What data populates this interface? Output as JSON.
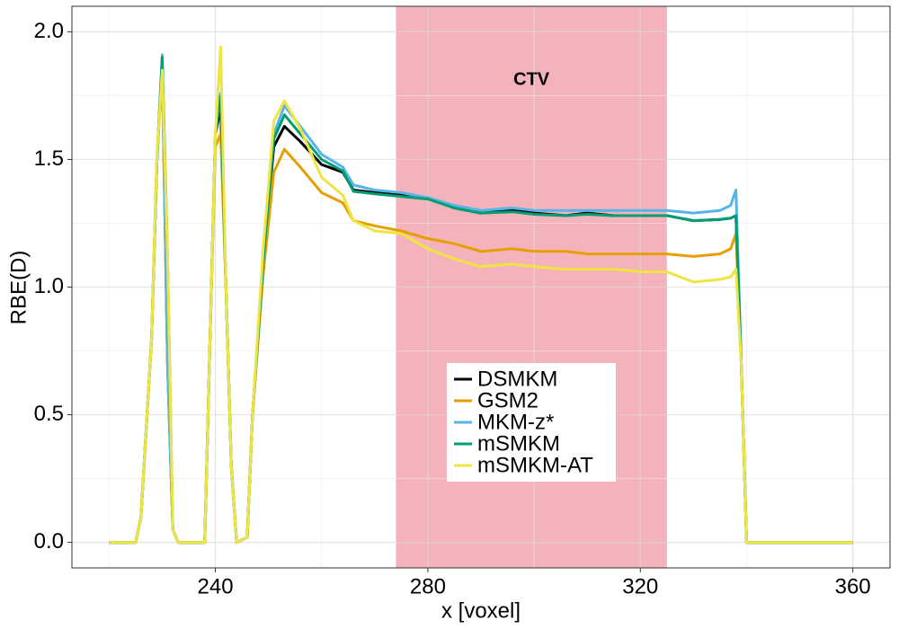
{
  "chart_data": {
    "type": "line",
    "xlabel": "x [voxel]",
    "ylabel": "RBE(D)",
    "x": [
      220,
      225,
      226,
      228,
      229,
      230,
      231,
      232,
      233,
      238,
      239,
      240,
      241,
      242,
      243,
      244,
      246,
      247,
      249,
      251,
      253,
      256,
      260,
      264,
      266,
      270,
      275,
      280,
      285,
      290,
      296,
      300,
      306,
      310,
      315,
      320,
      325,
      330,
      335,
      337,
      338,
      339,
      340,
      360
    ],
    "series": [
      {
        "name": "DSMKM",
        "color": "#000000",
        "values": [
          0,
          0,
          0.1,
          0.8,
          1.5,
          1.88,
          0.7,
          0.05,
          0,
          0,
          0.8,
          1.6,
          1.7,
          1.0,
          0.3,
          0,
          0.02,
          0.5,
          1.1,
          1.55,
          1.63,
          1.57,
          1.48,
          1.45,
          1.38,
          1.37,
          1.36,
          1.35,
          1.31,
          1.29,
          1.3,
          1.29,
          1.28,
          1.29,
          1.28,
          1.28,
          1.28,
          1.26,
          1.265,
          1.27,
          1.28,
          0.7,
          0,
          0
        ]
      },
      {
        "name": "GSM2",
        "color": "#e69f00",
        "values": [
          0,
          0,
          0.1,
          0.8,
          1.5,
          1.85,
          0.7,
          0.05,
          0,
          0,
          0.8,
          1.55,
          1.6,
          1.0,
          0.3,
          0,
          0.02,
          0.5,
          1.05,
          1.45,
          1.54,
          1.47,
          1.37,
          1.33,
          1.26,
          1.24,
          1.22,
          1.19,
          1.17,
          1.14,
          1.15,
          1.14,
          1.14,
          1.13,
          1.13,
          1.13,
          1.13,
          1.12,
          1.13,
          1.15,
          1.21,
          0.7,
          0,
          0
        ]
      },
      {
        "name": "MKM-z*",
        "color": "#56b4e9",
        "values": [
          0,
          0,
          0.1,
          0.8,
          1.5,
          1.91,
          0.7,
          0.05,
          0,
          0,
          0.8,
          1.6,
          1.76,
          1.0,
          0.3,
          0,
          0.02,
          0.5,
          1.1,
          1.6,
          1.71,
          1.63,
          1.52,
          1.47,
          1.4,
          1.38,
          1.37,
          1.35,
          1.32,
          1.3,
          1.31,
          1.3,
          1.3,
          1.3,
          1.3,
          1.3,
          1.3,
          1.29,
          1.3,
          1.32,
          1.38,
          0.7,
          0,
          0
        ]
      },
      {
        "name": "mSMKM",
        "color": "#009e73",
        "values": [
          0,
          0,
          0.1,
          0.8,
          1.5,
          1.9,
          1.12,
          0.05,
          0,
          0,
          0.8,
          1.6,
          1.75,
          1.0,
          0.3,
          0,
          0.02,
          0.5,
          1.1,
          1.58,
          1.675,
          1.6,
          1.5,
          1.455,
          1.375,
          1.365,
          1.355,
          1.345,
          1.31,
          1.29,
          1.295,
          1.285,
          1.28,
          1.285,
          1.28,
          1.28,
          1.28,
          1.26,
          1.265,
          1.27,
          1.28,
          0.7,
          0,
          0
        ]
      },
      {
        "name": "mSMKM-AT",
        "color": "#f0e442",
        "values": [
          0,
          0,
          0.1,
          0.8,
          1.52,
          1.85,
          1.12,
          0.05,
          0,
          0,
          0.8,
          1.6,
          1.94,
          1.0,
          0.3,
          0,
          0.02,
          0.5,
          1.15,
          1.65,
          1.73,
          1.62,
          1.43,
          1.36,
          1.26,
          1.22,
          1.21,
          1.15,
          1.11,
          1.08,
          1.09,
          1.08,
          1.07,
          1.07,
          1.07,
          1.06,
          1.06,
          1.02,
          1.03,
          1.04,
          1.07,
          0.7,
          0,
          0
        ]
      }
    ],
    "xlim": [
      213,
      367
    ],
    "ylim": [
      -0.1,
      2.1
    ],
    "xticks": [
      240,
      280,
      320,
      360
    ],
    "yticks": [
      {
        "value": 0,
        "label": "0.0"
      },
      0.5,
      {
        "value": 1,
        "label": "1.0"
      },
      1.5,
      {
        "value": 2,
        "label": "2.0"
      }
    ],
    "grid": true,
    "shade": {
      "xmin": 274,
      "xmax": 325,
      "label": "CTV",
      "color": "#f4b3bb"
    }
  }
}
